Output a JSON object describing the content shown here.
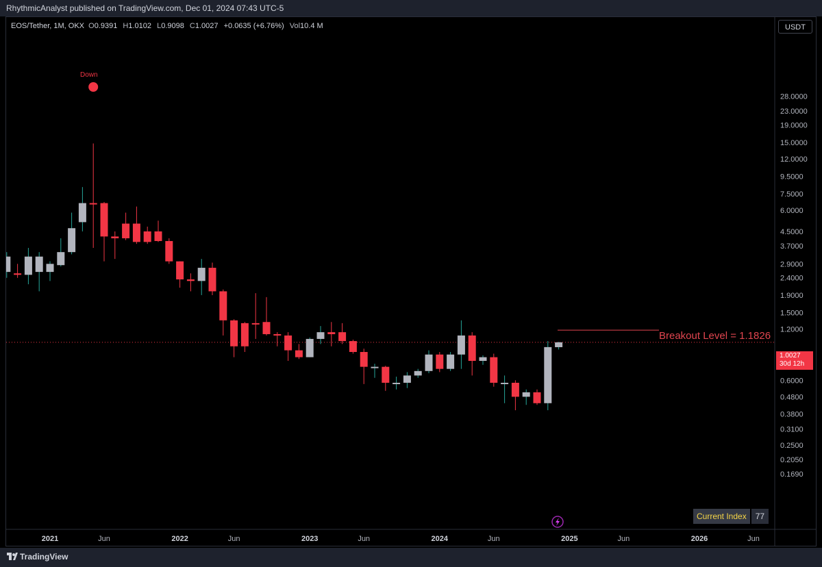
{
  "header": {
    "published": "RhythmicAnalyst published on TradingView.com, Dec 01, 2024 07:43 UTC-5"
  },
  "legend": {
    "symbol": "EOS/Tether, 1M, OKX",
    "o_label": "O",
    "o": "0.9391",
    "h_label": "H",
    "h": "1.0102",
    "l_label": "L",
    "l": "0.9098",
    "c_label": "C",
    "c": "1.0027",
    "change": "+0.0635 (+6.76%)",
    "vol_label": "Vol",
    "vol": "10.4 M"
  },
  "currency": "USDT",
  "breakout_label": "Breakout Level =  1.1826",
  "down_label": "Down",
  "last_price": {
    "value": "1.0027",
    "countdown": "30d 12h"
  },
  "current_index": {
    "label": "Current Index",
    "value": "77"
  },
  "footer": {
    "brand": "TradingView"
  },
  "colors": {
    "up": "#b2b5be",
    "down": "#f23645",
    "up_wick": "#26a69a",
    "background": "#000000"
  },
  "chart_data": {
    "type": "candlestick",
    "symbol": "EOS/Tether",
    "interval": "1M",
    "scale": "log",
    "y_ticks": [
      "28.0000",
      "23.0000",
      "19.0000",
      "15.0000",
      "12.0000",
      "9.5000",
      "7.5000",
      "6.0000",
      "4.5000",
      "3.7000",
      "2.9000",
      "2.4000",
      "1.9000",
      "1.5000",
      "1.2000",
      "0.7500",
      "0.6000",
      "0.4800",
      "0.3800",
      "0.3100",
      "0.2500",
      "0.2050",
      "0.1690"
    ],
    "x_ticks": [
      {
        "label": "2021",
        "date": "2021-01",
        "bold": true
      },
      {
        "label": "Jun",
        "date": "2021-06",
        "bold": false
      },
      {
        "label": "2022",
        "date": "2022-01",
        "bold": true
      },
      {
        "label": "Jun",
        "date": "2022-06",
        "bold": false
      },
      {
        "label": "2023",
        "date": "2023-01",
        "bold": true
      },
      {
        "label": "Jun",
        "date": "2023-06",
        "bold": false
      },
      {
        "label": "2024",
        "date": "2024-01",
        "bold": true
      },
      {
        "label": "Jun",
        "date": "2024-06",
        "bold": false
      },
      {
        "label": "2025",
        "date": "2025-01",
        "bold": true
      },
      {
        "label": "Jun",
        "date": "2025-06",
        "bold": false
      },
      {
        "label": "2026",
        "date": "2026-01",
        "bold": true
      },
      {
        "label": "Jun",
        "date": "2026-06",
        "bold": false
      }
    ],
    "breakout_level": 1.1826,
    "last_close": 1.0027,
    "candles": [
      {
        "d": "2020-09",
        "o": 2.6,
        "h": 3.4,
        "l": 2.4,
        "c": 3.2
      },
      {
        "d": "2020-10",
        "o": 2.55,
        "h": 2.9,
        "l": 2.4,
        "c": 2.5
      },
      {
        "d": "2020-11",
        "o": 2.5,
        "h": 3.6,
        "l": 2.2,
        "c": 3.2
      },
      {
        "d": "2020-12",
        "o": 2.6,
        "h": 3.4,
        "l": 2.0,
        "c": 3.2
      },
      {
        "d": "2021-01",
        "o": 2.6,
        "h": 3.0,
        "l": 2.3,
        "c": 2.9
      },
      {
        "d": "2021-02",
        "o": 2.85,
        "h": 4.1,
        "l": 2.8,
        "c": 3.4
      },
      {
        "d": "2021-03",
        "o": 3.4,
        "h": 5.8,
        "l": 3.3,
        "c": 4.7
      },
      {
        "d": "2021-04",
        "o": 5.1,
        "h": 8.2,
        "l": 4.5,
        "c": 6.6
      },
      {
        "d": "2021-05",
        "o": 6.6,
        "h": 14.8,
        "l": 3.6,
        "c": 6.5
      },
      {
        "d": "2021-06",
        "o": 6.6,
        "h": 6.7,
        "l": 3.0,
        "c": 4.2
      },
      {
        "d": "2021-07",
        "o": 4.2,
        "h": 4.5,
        "l": 3.1,
        "c": 4.1
      },
      {
        "d": "2021-08",
        "o": 5.0,
        "h": 5.8,
        "l": 4.0,
        "c": 4.1
      },
      {
        "d": "2021-09",
        "o": 5.0,
        "h": 6.3,
        "l": 3.8,
        "c": 3.9
      },
      {
        "d": "2021-10",
        "o": 4.5,
        "h": 4.8,
        "l": 3.8,
        "c": 3.9
      },
      {
        "d": "2021-11",
        "o": 4.5,
        "h": 5.2,
        "l": 3.9,
        "c": 3.95
      },
      {
        "d": "2021-12",
        "o": 3.95,
        "h": 4.1,
        "l": 2.9,
        "c": 3.0
      },
      {
        "d": "2022-01",
        "o": 3.0,
        "h": 3.0,
        "l": 2.1,
        "c": 2.35
      },
      {
        "d": "2022-02",
        "o": 2.35,
        "h": 2.55,
        "l": 2.0,
        "c": 2.3
      },
      {
        "d": "2022-03",
        "o": 2.3,
        "h": 3.1,
        "l": 1.9,
        "c": 2.75
      },
      {
        "d": "2022-04",
        "o": 2.75,
        "h": 2.95,
        "l": 1.9,
        "c": 2.0
      },
      {
        "d": "2022-05",
        "o": 2.0,
        "h": 2.05,
        "l": 1.1,
        "c": 1.35
      },
      {
        "d": "2022-06",
        "o": 1.35,
        "h": 1.37,
        "l": 0.82,
        "c": 0.95
      },
      {
        "d": "2022-07",
        "o": 1.3,
        "h": 1.32,
        "l": 0.88,
        "c": 0.95
      },
      {
        "d": "2022-08",
        "o": 1.3,
        "h": 1.95,
        "l": 1.05,
        "c": 1.28
      },
      {
        "d": "2022-09",
        "o": 1.32,
        "h": 1.85,
        "l": 1.1,
        "c": 1.12
      },
      {
        "d": "2022-10",
        "o": 1.12,
        "h": 1.15,
        "l": 0.95,
        "c": 1.1
      },
      {
        "d": "2022-11",
        "o": 1.1,
        "h": 1.15,
        "l": 0.78,
        "c": 0.9
      },
      {
        "d": "2022-12",
        "o": 0.9,
        "h": 0.98,
        "l": 0.8,
        "c": 0.82
      },
      {
        "d": "2023-01",
        "o": 0.82,
        "h": 1.07,
        "l": 0.82,
        "c": 1.05
      },
      {
        "d": "2023-02",
        "o": 1.05,
        "h": 1.25,
        "l": 0.98,
        "c": 1.15
      },
      {
        "d": "2023-03",
        "o": 1.15,
        "h": 1.32,
        "l": 0.95,
        "c": 1.12
      },
      {
        "d": "2023-04",
        "o": 1.15,
        "h": 1.3,
        "l": 0.98,
        "c": 1.02
      },
      {
        "d": "2023-05",
        "o": 1.02,
        "h": 1.04,
        "l": 0.86,
        "c": 0.88
      },
      {
        "d": "2023-06",
        "o": 0.88,
        "h": 0.92,
        "l": 0.57,
        "c": 0.72
      },
      {
        "d": "2023-07",
        "o": 0.72,
        "h": 0.75,
        "l": 0.62,
        "c": 0.72
      },
      {
        "d": "2023-08",
        "o": 0.72,
        "h": 0.73,
        "l": 0.52,
        "c": 0.58
      },
      {
        "d": "2023-09",
        "o": 0.58,
        "h": 0.63,
        "l": 0.53,
        "c": 0.58
      },
      {
        "d": "2023-10",
        "o": 0.58,
        "h": 0.67,
        "l": 0.54,
        "c": 0.64
      },
      {
        "d": "2023-11",
        "o": 0.64,
        "h": 0.7,
        "l": 0.62,
        "c": 0.68
      },
      {
        "d": "2023-12",
        "o": 0.68,
        "h": 0.9,
        "l": 0.66,
        "c": 0.85
      },
      {
        "d": "2024-01",
        "o": 0.85,
        "h": 0.88,
        "l": 0.67,
        "c": 0.7
      },
      {
        "d": "2024-02",
        "o": 0.7,
        "h": 0.88,
        "l": 0.68,
        "c": 0.85
      },
      {
        "d": "2024-03",
        "o": 0.85,
        "h": 1.35,
        "l": 0.7,
        "c": 1.1
      },
      {
        "d": "2024-04",
        "o": 1.1,
        "h": 1.15,
        "l": 0.64,
        "c": 0.78
      },
      {
        "d": "2024-05",
        "o": 0.78,
        "h": 0.84,
        "l": 0.74,
        "c": 0.82
      },
      {
        "d": "2024-06",
        "o": 0.82,
        "h": 0.86,
        "l": 0.55,
        "c": 0.58
      },
      {
        "d": "2024-07",
        "o": 0.58,
        "h": 0.64,
        "l": 0.44,
        "c": 0.58
      },
      {
        "d": "2024-08",
        "o": 0.58,
        "h": 0.6,
        "l": 0.4,
        "c": 0.48
      },
      {
        "d": "2024-09",
        "o": 0.48,
        "h": 0.53,
        "l": 0.43,
        "c": 0.51
      },
      {
        "d": "2024-10",
        "o": 0.51,
        "h": 0.53,
        "l": 0.43,
        "c": 0.44
      },
      {
        "d": "2024-11",
        "o": 0.44,
        "h": 1.02,
        "l": 0.4,
        "c": 0.94
      },
      {
        "d": "2024-12",
        "o": 0.9391,
        "h": 1.0102,
        "l": 0.9098,
        "c": 1.0027
      }
    ],
    "annotations": [
      {
        "type": "marker",
        "date": "2021-05",
        "text": "Down"
      }
    ]
  }
}
